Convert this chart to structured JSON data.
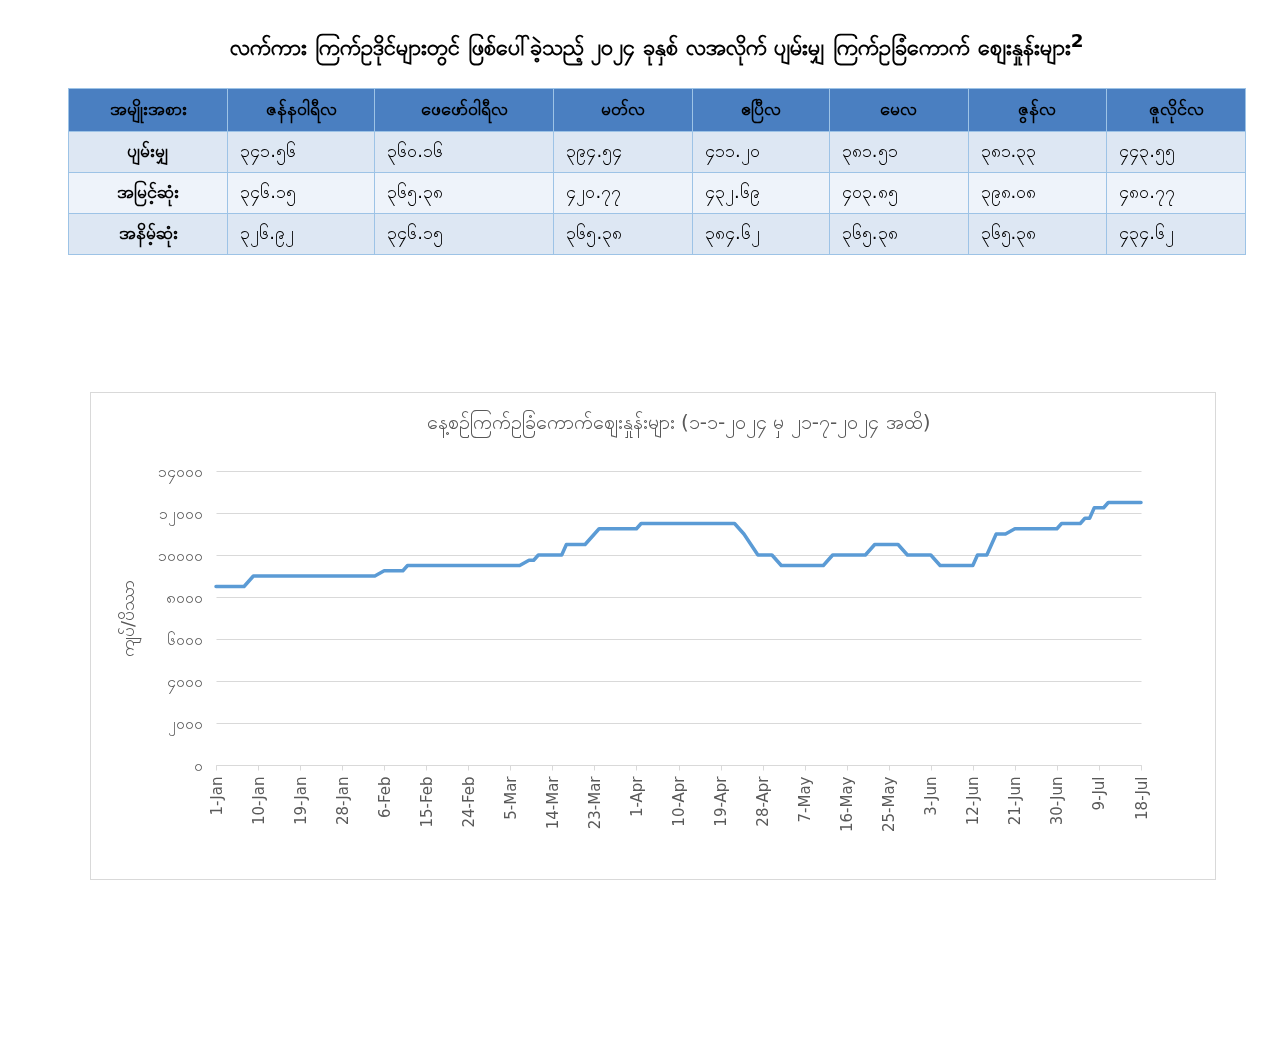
{
  "chart_data": [
    {
      "type": "other",
      "title": "လက်ကား ကြက်ဥဒိုင်များတွင် ဖြစ်ပေါ်ခဲ့သည့် ၂၀၂၄ ခုနှစ် လအလိုက် ပျမ်းမျှ ကြက်ဥခြံကောက် စျေးနှုန်းများ$^{2}$",
      "categories": [
        "အမျိုးအစား",
        "ဇန်နဝါရီလ",
        "ဖေဖော်ဝါရီလ",
        "မတ်လ",
        "ဧပြီလ",
        "မေလ",
        "ဇွန်လ",
        "ဇူလိုင်လ"
      ],
      "y_categories": [
        "ပျမ်းမျှ",
        "အမြင့်ဆုံး",
        "အနိမ့်ဆုံး"
      ],
      "cell_labels": [
        [
          "၃၄၁.၅၆",
          "၃၆၀.၁၆",
          "၃၉၄.၅၄",
          "၄၁၁.၂၀",
          "၃၈၁.၅၁",
          "၃၈၁.၃၃",
          "၄၄၃.၅၅"
        ],
        [
          "၃၄၆.၁၅",
          "၃၆၅.၃၈",
          "၄၂၀.၇၇",
          "၄၃၂.၆၉",
          "၄၀၃.၈၅",
          "၃၉၈.၀၈",
          "၄၈၀.၇၇"
        ],
        [
          "၃၂၆.၉၂",
          "၃၄၆.၁၅",
          "၃၆၅.၃၈",
          "၃၈၄.၆၂",
          "၃၆၅.၃၈",
          "၃၆၅.၃၈",
          "၄၃၄.၆၂"
        ]
      ]
    },
    {
      "type": "line",
      "title": "နေ့စဉ်ကြက်ဥခြံကောက်စျေးနှုန်းများ (၁-၁-၂၀၂၄ မှ ၂၁-၇-၂၀၂၄ အထိ)",
      "ylabel": "ကျပ်/ပိဿာ",
      "x": [
        "--01-01",
        "--01-07",
        "--01-09",
        "--02-04",
        "--02-06",
        "--02-10",
        "--02-11",
        "--03-07",
        "--03-09",
        "--03-10",
        "--03-11",
        "--03-16",
        "--03-17",
        "--03-21",
        "--03-24",
        "--04-01",
        "--04-02",
        "--04-22",
        "--04-24",
        "--04-27",
        "--04-30",
        "--05-02",
        "--05-11",
        "--05-13",
        "--05-20",
        "--05-22",
        "--05-27",
        "--05-29",
        "--06-03",
        "--06-05",
        "--06-12",
        "--06-13",
        "--06-15",
        "--06-17",
        "--06-19",
        "--06-21",
        "--06-30",
        "--07-01",
        "--07-05",
        "--07-06",
        "--07-07",
        "--07-08",
        "--07-10",
        "--07-11",
        "--07-18"
      ],
      "series": [
        {
          "color": "#5b9bd5",
          "values": [
            8500,
            8500,
            9000,
            9000,
            9250,
            9250,
            9500,
            9500,
            9750,
            9750,
            10000,
            10000,
            10500,
            10500,
            11250,
            11250,
            11500,
            11500,
            11000,
            10000,
            10000,
            9500,
            9500,
            10000,
            10000,
            10500,
            10500,
            10000,
            10000,
            9500,
            9500,
            10000,
            10000,
            11000,
            11000,
            11250,
            11250,
            11500,
            11500,
            11750,
            11750,
            12250,
            12250,
            12500,
            12500
          ]
        }
      ],
      "xlim": [
        "--01-01",
        "--07-18"
      ],
      "xticks": [
        {
          "value": "--01-01",
          "label": "1-Jan"
        },
        {
          "value": "--01-10",
          "label": "10-Jan"
        },
        {
          "value": "--01-19",
          "label": "19-Jan"
        },
        {
          "value": "--01-28",
          "label": "28-Jan"
        },
        {
          "value": "--02-06",
          "label": "6-Feb"
        },
        {
          "value": "--02-15",
          "label": "15-Feb"
        },
        {
          "value": "--02-24",
          "label": "24-Feb"
        },
        {
          "value": "--03-05",
          "label": "5-Mar"
        },
        {
          "value": "--03-14",
          "label": "14-Mar"
        },
        {
          "value": "--03-23",
          "label": "23-Mar"
        },
        {
          "value": "--04-01",
          "label": "1-Apr"
        },
        {
          "value": "--04-10",
          "label": "10-Apr"
        },
        {
          "value": "--04-19",
          "label": "19-Apr"
        },
        {
          "value": "--04-28",
          "label": "28-Apr"
        },
        {
          "value": "--05-07",
          "label": "7-May"
        },
        {
          "value": "--05-16",
          "label": "16-May"
        },
        {
          "value": "--05-25",
          "label": "25-May"
        },
        {
          "value": "--06-03",
          "label": "3-Jun"
        },
        {
          "value": "--06-12",
          "label": "12-Jun"
        },
        {
          "value": "--06-21",
          "label": "21-Jun"
        },
        {
          "value": "--06-30",
          "label": "30-Jun"
        },
        {
          "value": "--07-09",
          "label": "9-Jul"
        },
        {
          "value": "--07-18",
          "label": "18-Jul"
        }
      ],
      "ylim": [
        0,
        14000
      ],
      "yticks": [
        {
          "value": 0,
          "label": "၀"
        },
        {
          "value": 2000,
          "label": "၂၀၀၀"
        },
        {
          "value": 4000,
          "label": "၄၀၀၀"
        },
        {
          "value": 6000,
          "label": "၆၀၀၀"
        },
        {
          "value": 8000,
          "label": "၈၀၀၀"
        },
        {
          "value": 10000,
          "label": "၁၀၀၀၀"
        },
        {
          "value": 12000,
          "label": "၁၂၀၀၀"
        },
        {
          "value": 14000,
          "label": "၁၄၀၀၀"
        }
      ],
      "grid": "y",
      "line_style": "solid"
    }
  ]
}
